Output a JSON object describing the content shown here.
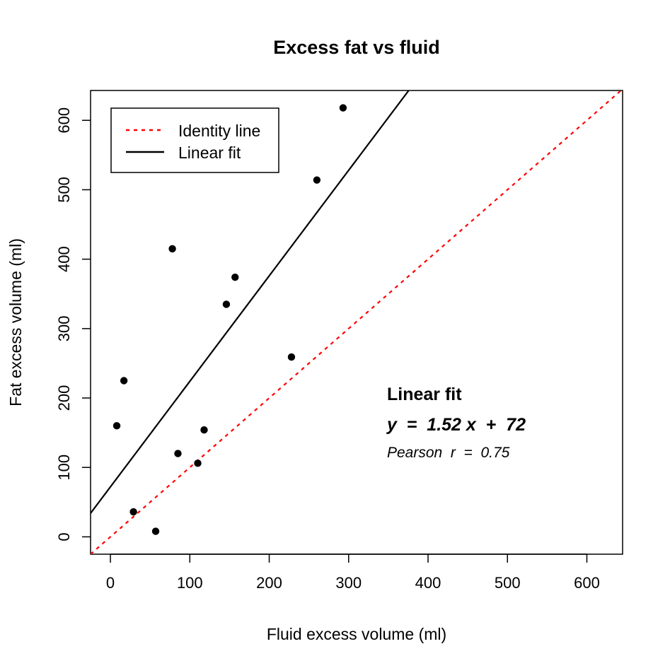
{
  "chart_data": {
    "type": "scatter",
    "title": "Excess fat vs fluid",
    "xlabel": "Fluid excess volume (ml)",
    "ylabel": "Fat excess volume (ml)",
    "xlim": [
      -25,
      645
    ],
    "ylim": [
      -25,
      643
    ],
    "xticks": [
      0,
      100,
      200,
      300,
      400,
      500,
      600
    ],
    "yticks": [
      0,
      100,
      200,
      300,
      400,
      500,
      600
    ],
    "xtick_labels": [
      "0",
      "100",
      "200",
      "300",
      "400",
      "500",
      "600"
    ],
    "ytick_labels": [
      "0",
      "100",
      "200",
      "300",
      "400",
      "500",
      "600"
    ],
    "points": [
      {
        "x": 8,
        "y": 160
      },
      {
        "x": 17,
        "y": 225
      },
      {
        "x": 29,
        "y": 36
      },
      {
        "x": 57,
        "y": 8
      },
      {
        "x": 78,
        "y": 415
      },
      {
        "x": 85,
        "y": 120
      },
      {
        "x": 110,
        "y": 106
      },
      {
        "x": 118,
        "y": 154
      },
      {
        "x": 146,
        "y": 335
      },
      {
        "x": 157,
        "y": 374
      },
      {
        "x": 228,
        "y": 259
      },
      {
        "x": 260,
        "y": 514
      },
      {
        "x": 293,
        "y": 618
      }
    ],
    "identity_line": {
      "slope": 1,
      "intercept": 0,
      "color": "#ff0000",
      "style": "dashed"
    },
    "fit_line": {
      "slope": 1.52,
      "intercept": 72,
      "color": "#000000",
      "style": "solid"
    },
    "legend": {
      "position": "top-left",
      "entries": [
        {
          "label": "Identity line",
          "color": "#ff0000",
          "style": "dashed"
        },
        {
          "label": "Linear fit",
          "color": "#000000",
          "style": "solid"
        }
      ]
    },
    "annotation": {
      "heading": "Linear fit",
      "equation": "y  =  1.52 x  +  72",
      "pearson": "Pearson  r  =  0.75"
    }
  }
}
